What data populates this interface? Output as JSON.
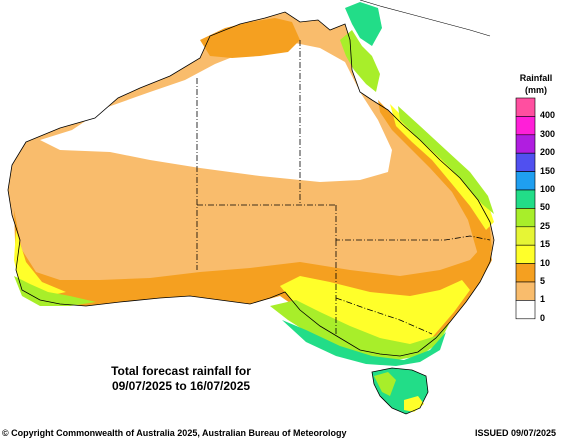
{
  "legend": {
    "title_line1": "Rainfall",
    "title_line2": "(mm)",
    "bins": [
      {
        "label": "400",
        "color": "#ff4fa0"
      },
      {
        "label": "300",
        "color": "#ff1fd8"
      },
      {
        "label": "200",
        "color": "#b01ee0"
      },
      {
        "label": "150",
        "color": "#5050f0"
      },
      {
        "label": "100",
        "color": "#1f9ff0"
      },
      {
        "label": "50",
        "color": "#22dd88"
      },
      {
        "label": "25",
        "color": "#a8ee2a"
      },
      {
        "label": "15",
        "color": "#e6f535"
      },
      {
        "label": "10",
        "color": "#ffff2a"
      },
      {
        "label": "5",
        "color": "#f5a020"
      },
      {
        "label": "1",
        "color": "#f9bc6c"
      },
      {
        "label": "0",
        "color": "#ffffff"
      }
    ]
  },
  "caption": {
    "line1": "Total forecast rainfall for",
    "line2": "09/07/2025 to 16/07/2025"
  },
  "footer": {
    "copyright": "© Copyright Commonwealth of Australia 2025, Australian Bureau of Meteorology",
    "issued": "ISSUED 09/07/2025"
  }
}
